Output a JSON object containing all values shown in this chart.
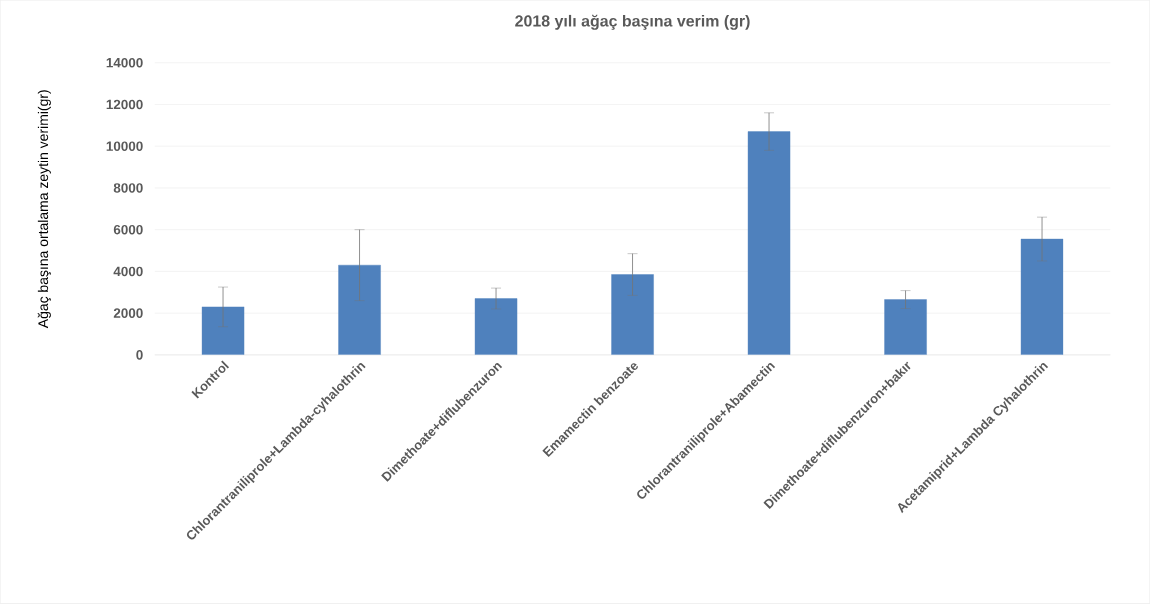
{
  "chart_data": {
    "type": "bar",
    "title": "2018 yılı ağaç başına verim (gr)",
    "ylabel": "Ağaç başına ortalama zeytin verimi(gr)",
    "categories": [
      "Kontrol",
      "Chlorantraniliprole+Lambda-cyhalothrin",
      "Dimethoate+diflubenzuron",
      "Emamectin benzoate",
      "Chlorantraniliprole+Abamectin",
      "Dimethoate+diflubenzuron+bakır",
      "Acetamiprid+Lambda Cyhalothrin"
    ],
    "values": [
      2300,
      4300,
      2700,
      3850,
      10700,
      2650,
      5550
    ],
    "errors": [
      950,
      1700,
      500,
      1000,
      900,
      430,
      1050
    ],
    "color": "#4f81bd",
    "ylim": [
      0,
      14000
    ],
    "yticks": [
      0,
      2000,
      4000,
      6000,
      8000,
      10000,
      12000,
      14000
    ],
    "grid": "y"
  }
}
